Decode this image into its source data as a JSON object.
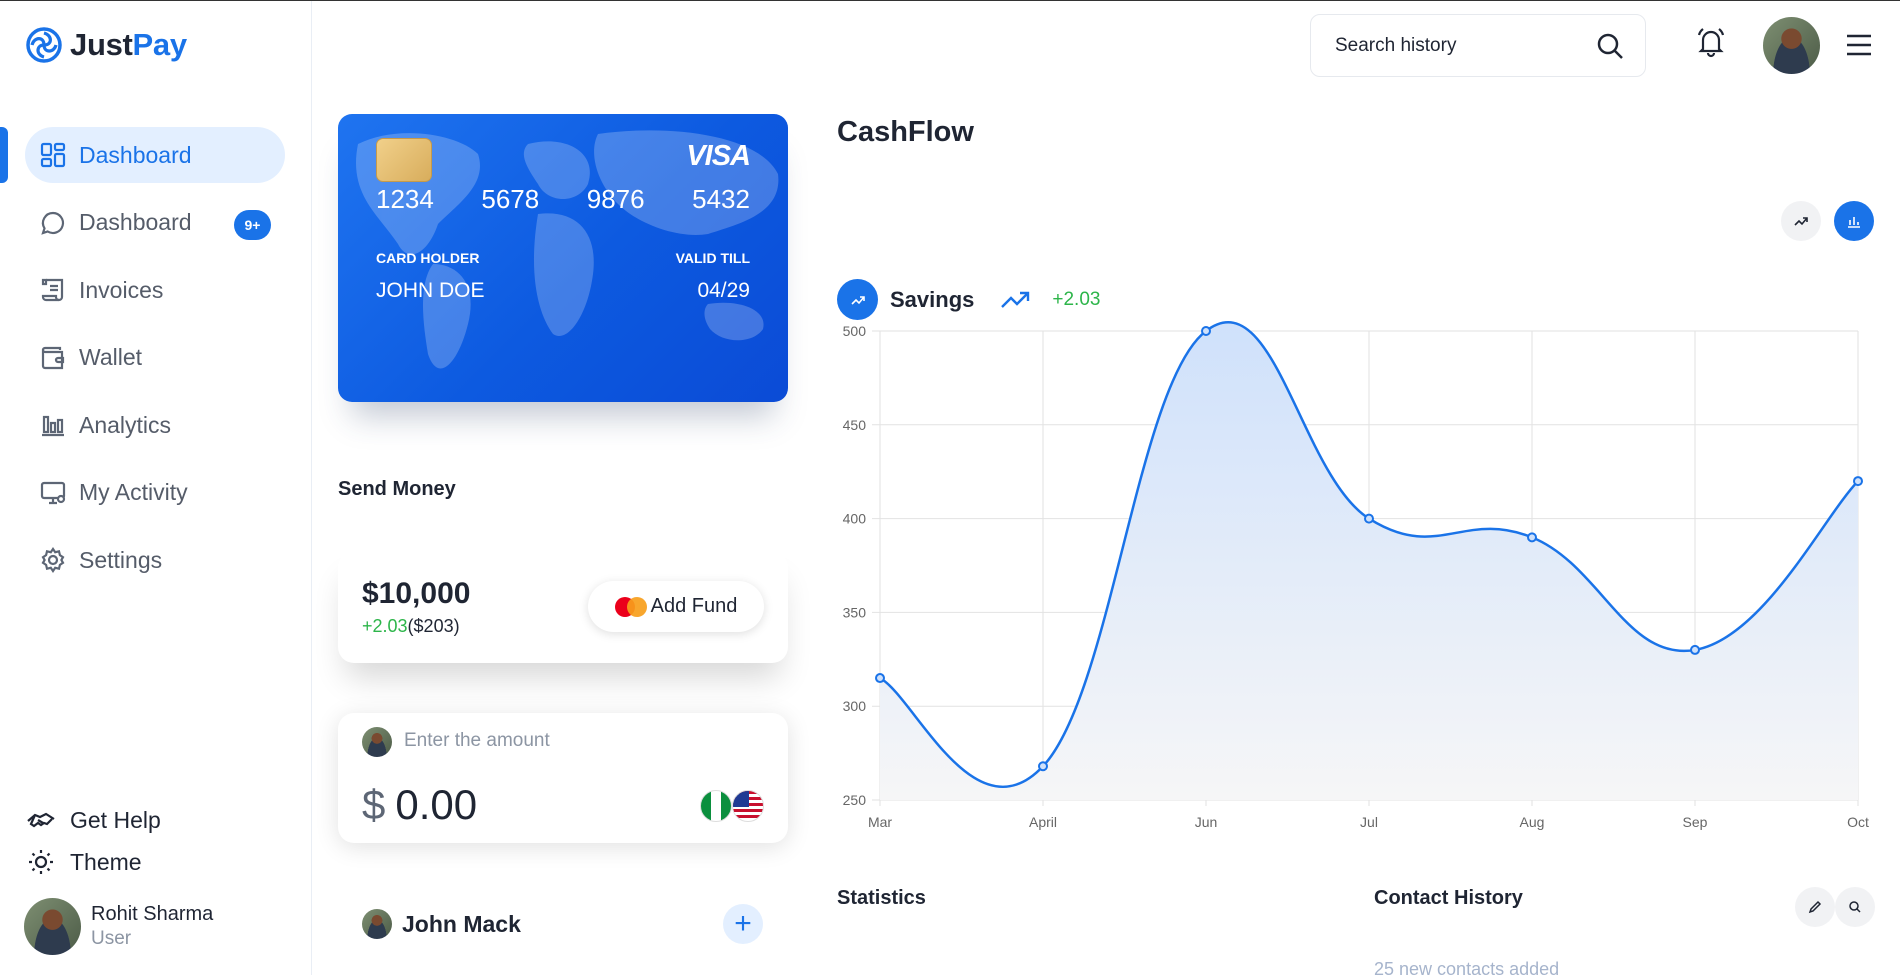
{
  "brand": {
    "part1": "Just",
    "part2": "Pay"
  },
  "sidebar": {
    "items": [
      {
        "label": "Dashboard",
        "icon": "grid-icon",
        "active": true
      },
      {
        "label": "Dashboard",
        "icon": "chat-icon",
        "badge": "9+"
      },
      {
        "label": "Invoices",
        "icon": "scroll-icon"
      },
      {
        "label": "Wallet",
        "icon": "wallet-icon"
      },
      {
        "label": "Analytics",
        "icon": "bar-chart-icon"
      },
      {
        "label": "My Activity",
        "icon": "monitor-icon"
      },
      {
        "label": "Settings",
        "icon": "gear-icon"
      }
    ],
    "get_help": "Get Help",
    "theme": "Theme",
    "user": {
      "name": "Rohit Sharma",
      "role": "User"
    }
  },
  "topbar": {
    "search_placeholder": "Search history"
  },
  "card": {
    "numbers": [
      "1234",
      "5678",
      "9876",
      "5432"
    ],
    "brand": "VISA",
    "holder_label": "CARD HOLDER",
    "holder_name": "JOHN DOE",
    "valid_label": "VALID TILL",
    "valid_value": "04/29"
  },
  "send_money": {
    "title": "Send Money",
    "balance": "$10,000",
    "change_pct": "+2.03",
    "change_abs": "($203)",
    "add_fund": "Add Fund",
    "amount_placeholder": "Enter the amount",
    "currency_symbol": "$",
    "amount_value": "0.00",
    "contact_name": "John Mack",
    "add_symbol": "+"
  },
  "cashflow": {
    "title": "CashFlow",
    "series_name": "Savings",
    "delta": "+2.03"
  },
  "chart_data": {
    "type": "area",
    "categories": [
      "Mar",
      "April",
      "Jun",
      "Jul",
      "Aug",
      "Sep",
      "Oct"
    ],
    "series": [
      {
        "name": "Savings",
        "values": [
          315,
          268,
          500,
          400,
          390,
          330,
          420
        ]
      }
    ],
    "y_ticks": [
      250,
      300,
      350,
      400,
      450,
      500
    ],
    "ylim": [
      250,
      500
    ],
    "grid": true,
    "line_color": "#1a73e8"
  },
  "statistics": {
    "title": "Statistics"
  },
  "contact_history": {
    "title": "Contact History",
    "subtitle": "25 new contacts added"
  }
}
